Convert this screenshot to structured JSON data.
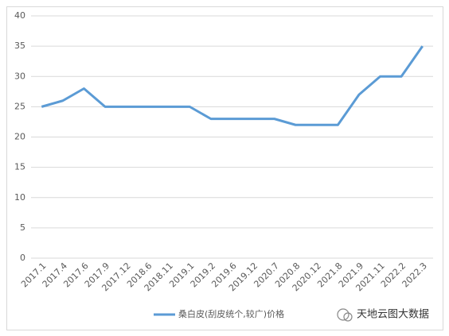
{
  "chart_data": {
    "type": "line",
    "categories": [
      "2017.1",
      "2017.4",
      "2017.6",
      "2017.9",
      "2017.12",
      "2018.6",
      "2018.11",
      "2019.1",
      "2019.2",
      "2019.6",
      "2019.12",
      "2020.7",
      "2020.8",
      "2020.12",
      "2021.8",
      "2021.9",
      "2021.11",
      "2022.2",
      "2022.3"
    ],
    "series": [
      {
        "name": "桑白皮(刮皮统个,较广)价格",
        "color": "#5b9bd5",
        "values": [
          25,
          26,
          28,
          25,
          25,
          25,
          25,
          25,
          23,
          23,
          23,
          23,
          22,
          22,
          22,
          27,
          30,
          30,
          35
        ]
      }
    ],
    "ylim": [
      0,
      40
    ],
    "yticks": [
      0,
      5,
      10,
      15,
      20,
      25,
      30,
      35,
      40
    ],
    "grid": true,
    "legend": "bottom",
    "watermark": "天地云图大数据"
  }
}
